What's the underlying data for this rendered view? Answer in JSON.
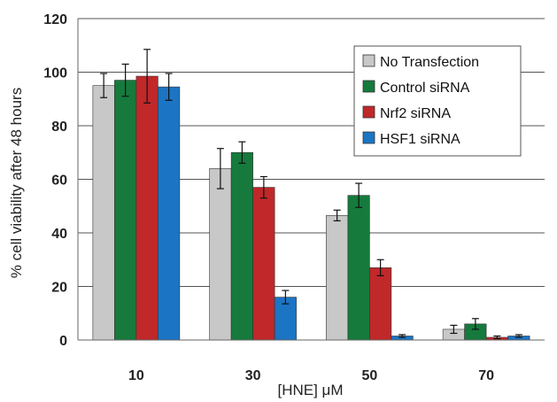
{
  "chart_data": {
    "type": "bar",
    "title": "",
    "xlabel": "[HNE] μM",
    "ylabel": "% cell viability after 48 hours",
    "categories": [
      "10",
      "30",
      "50",
      "70"
    ],
    "ylim": [
      0,
      120
    ],
    "yticks": [
      "0",
      "20",
      "40",
      "60",
      "80",
      "100",
      "120"
    ],
    "grid": "horizontal",
    "legend_position": "top-right",
    "series": [
      {
        "name": "No Transfection",
        "color": "#c8c8c8",
        "values": [
          95,
          64,
          46.5,
          4
        ],
        "errors": [
          4.5,
          7.5,
          2,
          1.5
        ]
      },
      {
        "name": "Control siRNA",
        "color": "#167a3c",
        "values": [
          97,
          70,
          54,
          6
        ],
        "errors": [
          6,
          4,
          4.5,
          2
        ]
      },
      {
        "name": "Nrf2 siRNA",
        "color": "#c0282a",
        "values": [
          98.5,
          57,
          27,
          1
        ],
        "errors": [
          10,
          4,
          3,
          0.5
        ]
      },
      {
        "name": "HSF1 siRNA",
        "color": "#1c74c4",
        "values": [
          94.5,
          16,
          1.5,
          1.5
        ],
        "errors": [
          5,
          2.5,
          0.5,
          0.5
        ]
      }
    ]
  }
}
